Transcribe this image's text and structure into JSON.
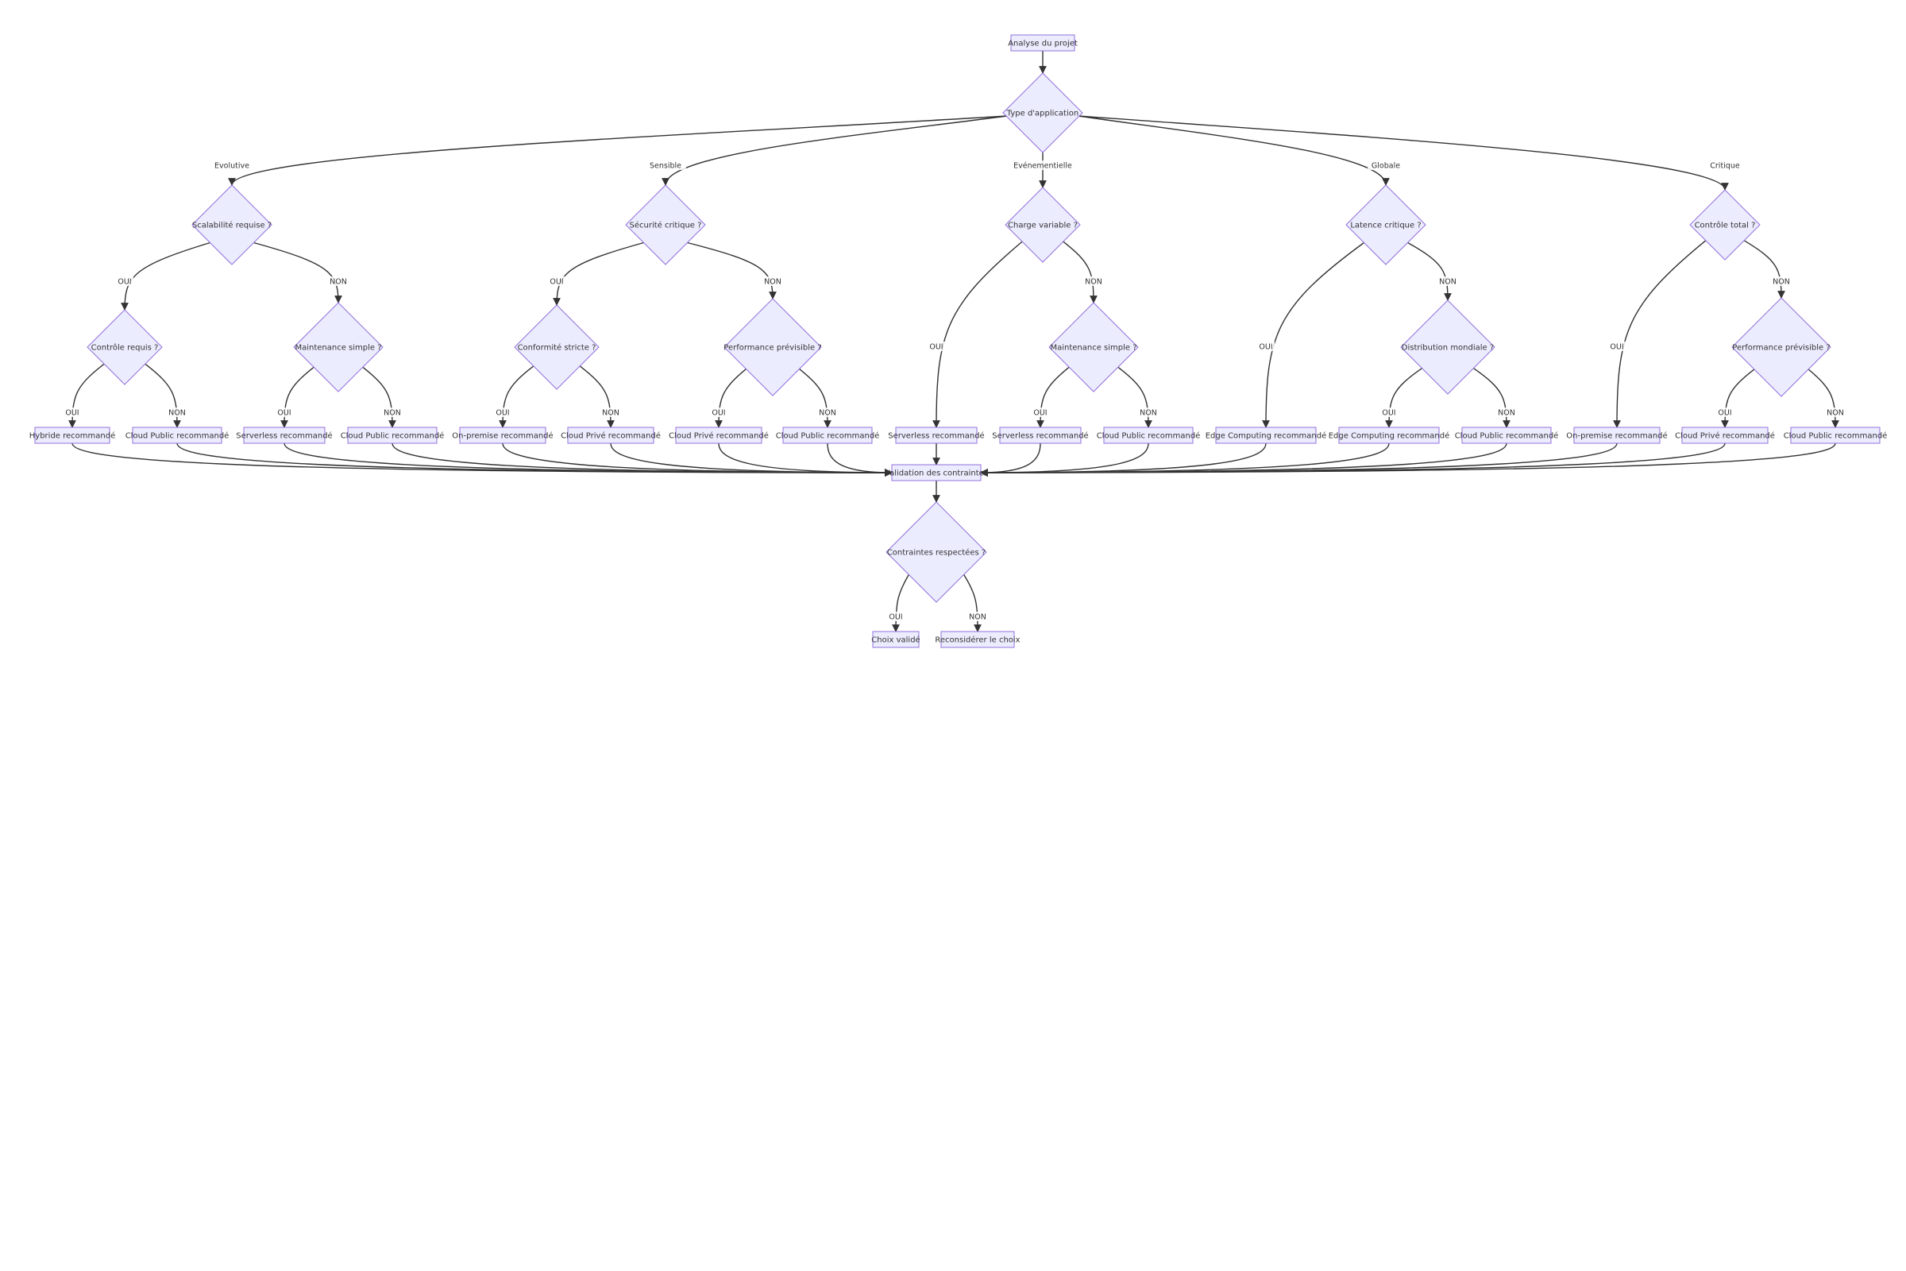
{
  "flowchart": {
    "nodes": {
      "start": "Analyse du projet",
      "type": "Type d'application",
      "d1": "Scalabilité requise ?",
      "d2": "Sécurité critique ?",
      "d3": "Charge variable ?",
      "d4": "Latence critique ?",
      "d5": "Contrôle total ?",
      "d1a": "Contrôle requis ?",
      "d1b": "Maintenance simple ?",
      "d2a": "Conformité stricte ?",
      "d2b": "Performance prévisible ?",
      "d3b": "Maintenance simple ?",
      "d4b": "Distribution mondiale ?",
      "d5b": "Performance prévisible ?",
      "l1": "Hybride recommandé",
      "l2": "Cloud Public recommandé",
      "l3": "Serverless recommandé",
      "l4": "Cloud Public recommandé",
      "l5": "On-premise recommandé",
      "l6": "Cloud Privé recommandé",
      "l7": "Cloud Privé recommandé",
      "l8": "Cloud Public recommandé",
      "l9": "Serverless recommandé",
      "l10": "Serverless recommandé",
      "l11": "Cloud Public recommandé",
      "l12": "Edge Computing recommandé",
      "l13": "Edge Computing recommandé",
      "l14": "Cloud Public recommandé",
      "l15": "On-premise recommandé",
      "l16": "Cloud Privé recommandé",
      "l17": "Cloud Public recommandé",
      "validation": "Validation des contraintes",
      "check": "Contraintes respectées ?",
      "ok": "Choix validé",
      "retry": "Reconsidérer le choix"
    },
    "edge_labels": {
      "evolutive": "Evolutive",
      "sensible": "Sensible",
      "evenementielle": "Evénementielle",
      "globale": "Globale",
      "critique": "Critique",
      "oui": "OUI",
      "non": "NON"
    },
    "edges": [
      {
        "from": "start",
        "to": "type"
      },
      {
        "from": "type",
        "to": "d1",
        "label": "evolutive"
      },
      {
        "from": "type",
        "to": "d2",
        "label": "sensible"
      },
      {
        "from": "type",
        "to": "d3",
        "label": "evenementielle"
      },
      {
        "from": "type",
        "to": "d4",
        "label": "globale"
      },
      {
        "from": "type",
        "to": "d5",
        "label": "critique"
      },
      {
        "from": "d1",
        "to": "d1a",
        "label": "oui"
      },
      {
        "from": "d1",
        "to": "d1b",
        "label": "non"
      },
      {
        "from": "d2",
        "to": "d2a",
        "label": "oui"
      },
      {
        "from": "d2",
        "to": "d2b",
        "label": "non"
      },
      {
        "from": "d3",
        "to": "l9",
        "label": "oui"
      },
      {
        "from": "d3",
        "to": "d3b",
        "label": "non"
      },
      {
        "from": "d4",
        "to": "l12",
        "label": "oui"
      },
      {
        "from": "d4",
        "to": "d4b",
        "label": "non"
      },
      {
        "from": "d5",
        "to": "l15",
        "label": "oui"
      },
      {
        "from": "d5",
        "to": "d5b",
        "label": "non"
      },
      {
        "from": "d1a",
        "to": "l1",
        "label": "oui"
      },
      {
        "from": "d1a",
        "to": "l2",
        "label": "non"
      },
      {
        "from": "d1b",
        "to": "l3",
        "label": "oui"
      },
      {
        "from": "d1b",
        "to": "l4",
        "label": "non"
      },
      {
        "from": "d2a",
        "to": "l5",
        "label": "oui"
      },
      {
        "from": "d2a",
        "to": "l6",
        "label": "non"
      },
      {
        "from": "d2b",
        "to": "l7",
        "label": "oui"
      },
      {
        "from": "d2b",
        "to": "l8",
        "label": "non"
      },
      {
        "from": "d3b",
        "to": "l10",
        "label": "oui"
      },
      {
        "from": "d3b",
        "to": "l11",
        "label": "non"
      },
      {
        "from": "d4b",
        "to": "l13",
        "label": "oui"
      },
      {
        "from": "d4b",
        "to": "l14",
        "label": "non"
      },
      {
        "from": "d5b",
        "to": "l16",
        "label": "oui"
      },
      {
        "from": "d5b",
        "to": "l17",
        "label": "non"
      },
      {
        "from": "l1",
        "to": "validation"
      },
      {
        "from": "l2",
        "to": "validation"
      },
      {
        "from": "l3",
        "to": "validation"
      },
      {
        "from": "l4",
        "to": "validation"
      },
      {
        "from": "l5",
        "to": "validation"
      },
      {
        "from": "l6",
        "to": "validation"
      },
      {
        "from": "l7",
        "to": "validation"
      },
      {
        "from": "l8",
        "to": "validation"
      },
      {
        "from": "l9",
        "to": "validation"
      },
      {
        "from": "l10",
        "to": "validation"
      },
      {
        "from": "l11",
        "to": "validation"
      },
      {
        "from": "l12",
        "to": "validation"
      },
      {
        "from": "l13",
        "to": "validation"
      },
      {
        "from": "l14",
        "to": "validation"
      },
      {
        "from": "l15",
        "to": "validation"
      },
      {
        "from": "l16",
        "to": "validation"
      },
      {
        "from": "l17",
        "to": "validation"
      },
      {
        "from": "validation",
        "to": "check"
      },
      {
        "from": "check",
        "to": "ok",
        "label": "oui"
      },
      {
        "from": "check",
        "to": "retry",
        "label": "non"
      }
    ]
  }
}
